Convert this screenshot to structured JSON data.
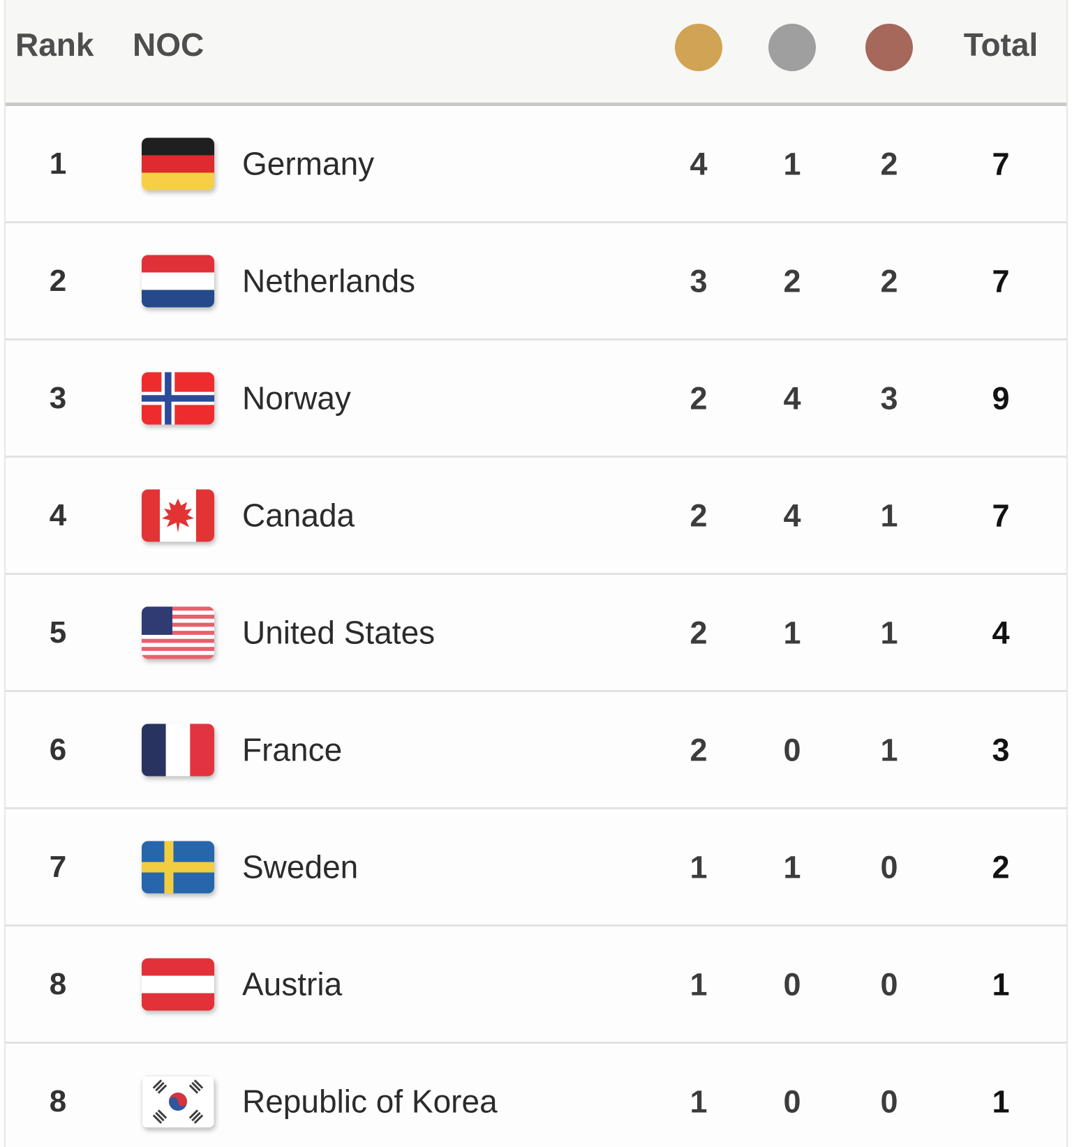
{
  "table": {
    "headers": {
      "rank": "Rank",
      "noc": "NOC",
      "total": "Total"
    },
    "medal_columns": [
      {
        "icon": "gold-medal-icon",
        "color": "#d1a355"
      },
      {
        "icon": "silver-medal-icon",
        "color": "#9f9f9f"
      },
      {
        "icon": "bronze-medal-icon",
        "color": "#a5685a"
      }
    ],
    "rows": [
      {
        "rank": "1",
        "country": "Germany",
        "flag_icon": "flag-germany",
        "gold": "4",
        "silver": "1",
        "bronze": "2",
        "total": "7"
      },
      {
        "rank": "2",
        "country": "Netherlands",
        "flag_icon": "flag-netherlands",
        "gold": "3",
        "silver": "2",
        "bronze": "2",
        "total": "7"
      },
      {
        "rank": "3",
        "country": "Norway",
        "flag_icon": "flag-norway",
        "gold": "2",
        "silver": "4",
        "bronze": "3",
        "total": "9"
      },
      {
        "rank": "4",
        "country": "Canada",
        "flag_icon": "flag-canada",
        "gold": "2",
        "silver": "4",
        "bronze": "1",
        "total": "7"
      },
      {
        "rank": "5",
        "country": "United States",
        "flag_icon": "flag-united-states",
        "gold": "2",
        "silver": "1",
        "bronze": "1",
        "total": "4"
      },
      {
        "rank": "6",
        "country": "France",
        "flag_icon": "flag-france",
        "gold": "2",
        "silver": "0",
        "bronze": "1",
        "total": "3"
      },
      {
        "rank": "7",
        "country": "Sweden",
        "flag_icon": "flag-sweden",
        "gold": "1",
        "silver": "1",
        "bronze": "0",
        "total": "2"
      },
      {
        "rank": "8",
        "country": "Austria",
        "flag_icon": "flag-austria",
        "gold": "1",
        "silver": "0",
        "bronze": "0",
        "total": "1"
      },
      {
        "rank": "8",
        "country": "Republic of Korea",
        "flag_icon": "flag-republic-of-korea",
        "gold": "1",
        "silver": "0",
        "bronze": "0",
        "total": "1"
      }
    ]
  },
  "colors": {
    "header_background": "#f7f7f5",
    "header_divider": "#c9c9c9",
    "row_divider": "#e2e2e2",
    "header_text": "#4e4e4e",
    "body_text": "#2b2b2b"
  }
}
